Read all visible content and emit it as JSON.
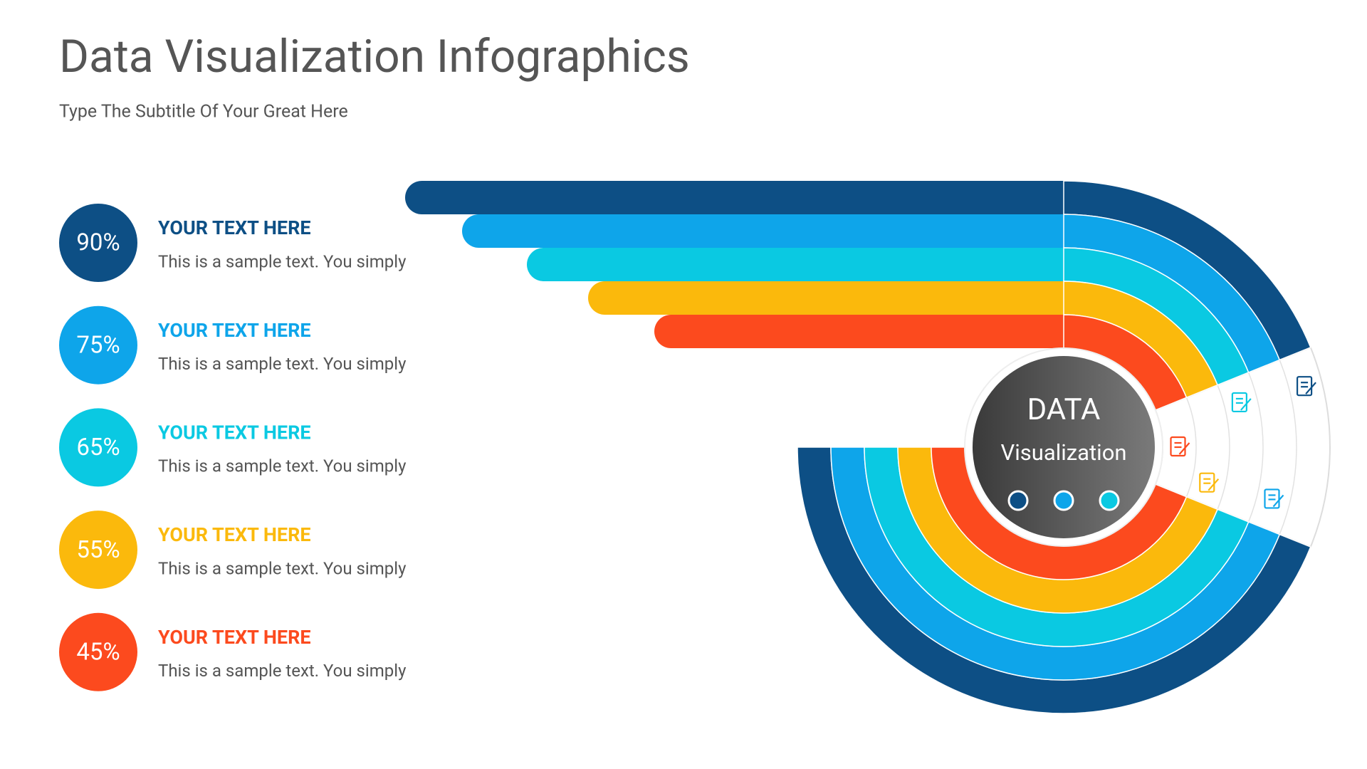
{
  "header": {
    "title": "Data Visualization Infographics",
    "subtitle": "Type The Subtitle Of Your Great Here"
  },
  "items": [
    {
      "percent": "90%",
      "heading": "YOUR TEXT HERE",
      "text": "This is a sample text. You simply",
      "color": "#0d4f85"
    },
    {
      "percent": "75%",
      "heading": "YOUR TEXT HERE",
      "text": "This is a sample text. You simply",
      "color": "#0ea5ea"
    },
    {
      "percent": "65%",
      "heading": "YOUR TEXT HERE",
      "text": "This is a sample text. You simply",
      "color": "#0ac9e2"
    },
    {
      "percent": "55%",
      "heading": "YOUR TEXT HERE",
      "text": "This is a sample text. You simply",
      "color": "#fbb90c"
    },
    {
      "percent": "45%",
      "heading": "YOUR TEXT HERE",
      "text": "This is a sample text. You simply",
      "color": "#fc4a1e"
    }
  ],
  "center": {
    "title": "DATA",
    "subtitle": "Visualization"
  }
}
